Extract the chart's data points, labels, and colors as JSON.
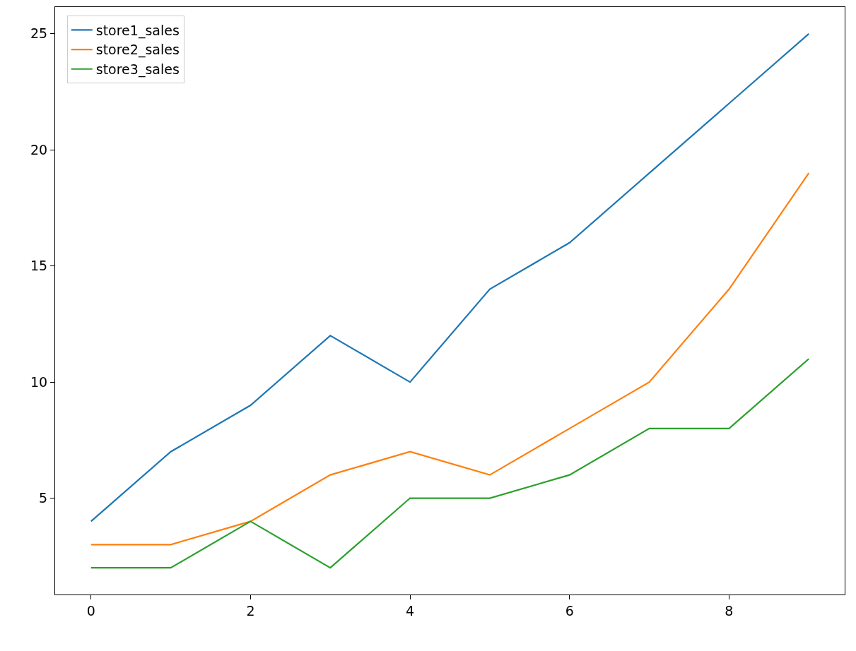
{
  "chart_data": {
    "type": "line",
    "x": [
      0,
      1,
      2,
      3,
      4,
      5,
      6,
      7,
      8,
      9
    ],
    "series": [
      {
        "name": "store1_sales",
        "color": "#1f77b4",
        "values": [
          4,
          7,
          9,
          12,
          10,
          14,
          16,
          19,
          22,
          25
        ]
      },
      {
        "name": "store2_sales",
        "color": "#ff7f0e",
        "values": [
          3,
          3,
          4,
          6,
          7,
          6,
          8,
          10,
          14,
          19
        ]
      },
      {
        "name": "store3_sales",
        "color": "#2ca02c",
        "values": [
          2,
          2,
          4,
          2,
          5,
          5,
          6,
          8,
          8,
          11
        ]
      }
    ],
    "xlim": [
      -0.45,
      9.45
    ],
    "xticks": [
      0,
      2,
      4,
      6,
      8
    ],
    "ylim": [
      0.85,
      26.15
    ],
    "yticks": [
      5,
      10,
      15,
      20,
      25
    ],
    "legend": "top left",
    "marker": "none",
    "line_style": "solid"
  }
}
